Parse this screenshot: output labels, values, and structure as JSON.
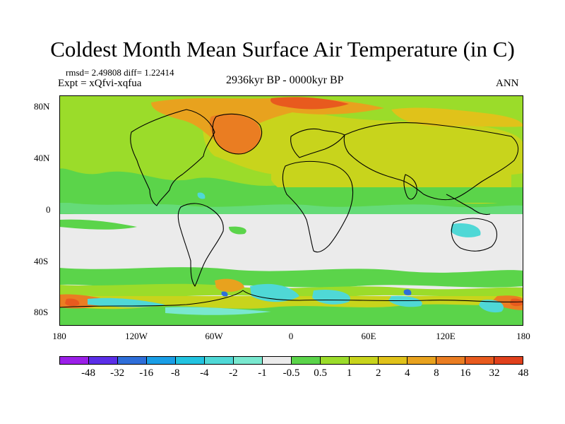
{
  "title": "Coldest Month Mean Surface Air Temperature (in C)",
  "stats": "rmsd= 2.49808 diff= 1.22414",
  "experiment": "Expt = xQfvi-xqfua",
  "period": "2936kyr BP - 0000kyr BP",
  "season": "ANN",
  "map": {
    "lat_ticks": [
      "80N",
      "40N",
      "0",
      "40S",
      "80S"
    ],
    "lon_ticks": [
      "180",
      "120W",
      "60W",
      "0",
      "60E",
      "120E",
      "180"
    ]
  },
  "colorbar": {
    "colors": [
      "#9b1fe8",
      "#5b2ee8",
      "#2e6ed9",
      "#1a9ee6",
      "#22c3e0",
      "#4fd8d6",
      "#79e8cf",
      "#ebebeb",
      "#5bd44a",
      "#9bdc2a",
      "#c8d41c",
      "#e0c21a",
      "#e8a21e",
      "#ea7d22",
      "#e85a1e",
      "#e0401c"
    ],
    "labels": [
      "-48",
      "-32",
      "-16",
      "-8",
      "-4",
      "-2",
      "-1",
      "-0.5",
      "0.5",
      "1",
      "2",
      "4",
      "8",
      "16",
      "32",
      "48"
    ]
  },
  "colors": {
    "neutral": "#ebebeb",
    "green": "#5bd44a",
    "lightgreen": "#9bdc2a",
    "yellowgreen": "#c8d41c",
    "yellow": "#e0c21a",
    "orange": "#e8a21e",
    "darkorange": "#ea7d22",
    "red": "#e85a1e",
    "cyan": "#4fd8d6",
    "blue": "#2e6ed9"
  }
}
